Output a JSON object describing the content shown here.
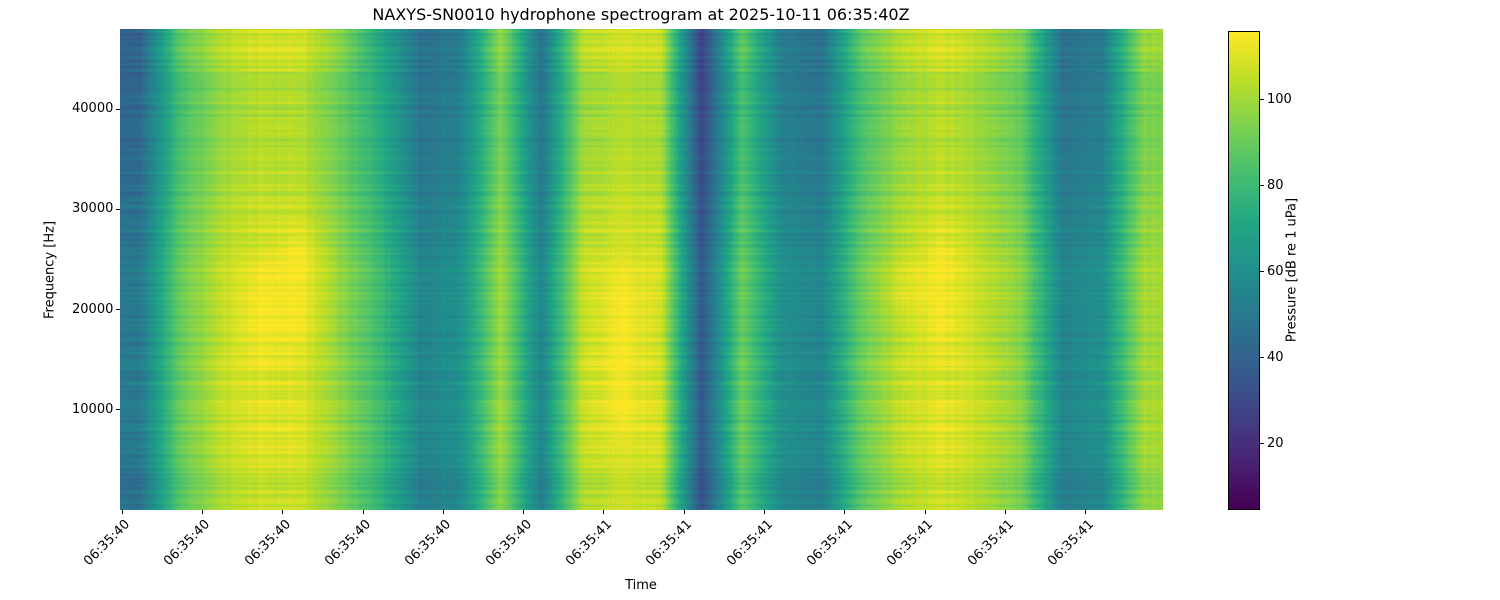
{
  "chart_data": {
    "type": "heatmap",
    "title": "NAXYS-SN0010 hydrophone spectrogram at 2025-10-11 06:35:40Z",
    "xlabel": "Time",
    "ylabel": "Frequency [Hz]",
    "x_tick_labels": [
      "06:35:40",
      "06:35:40",
      "06:35:40",
      "06:35:40",
      "06:35:40",
      "06:35:40",
      "06:35:41",
      "06:35:41",
      "06:35:41",
      "06:35:41",
      "06:35:41",
      "06:35:41",
      "06:35:41"
    ],
    "y_ticks_hz": [
      10000,
      20000,
      30000,
      40000
    ],
    "ylim_hz": [
      0,
      48000
    ],
    "colormap": "viridis",
    "grid": false,
    "legend": "none",
    "colorbar": {
      "label": "Pressure [dB re 1 uPa]",
      "ticks": [
        20,
        40,
        60,
        80,
        100
      ],
      "vmin": 5,
      "vmax": 116
    },
    "values_db": {
      "orientation": "rows are frequency bands from lowest (first) to highest (last); columns are time from left to right; coarse estimate of spectrogram level in dB re 1 uPa",
      "rows": [
        [
          47,
          87,
          102,
          107,
          107,
          94,
          77,
          52,
          57,
          97,
          52,
          102,
          107,
          105,
          32,
          87,
          57,
          52,
          87,
          102,
          108,
          102,
          92,
          52,
          57,
          97
        ],
        [
          50,
          90,
          105,
          110,
          110,
          97,
          80,
          55,
          60,
          100,
          55,
          105,
          110,
          108,
          35,
          90,
          60,
          55,
          90,
          105,
          111,
          105,
          95,
          55,
          60,
          100
        ],
        [
          51,
          91,
          106,
          111,
          111,
          98,
          81,
          56,
          61,
          101,
          56,
          106,
          115,
          109,
          36,
          91,
          61,
          56,
          91,
          106,
          112,
          106,
          96,
          56,
          61,
          101
        ],
        [
          52,
          90,
          107,
          112,
          110,
          97,
          80,
          55,
          62,
          100,
          55,
          107,
          115,
          108,
          35,
          92,
          60,
          55,
          92,
          107,
          111,
          107,
          95,
          55,
          62,
          100
        ],
        [
          50,
          90,
          105,
          115,
          115,
          97,
          80,
          55,
          60,
          100,
          55,
          105,
          115,
          108,
          35,
          90,
          60,
          55,
          90,
          105,
          115,
          105,
          95,
          55,
          60,
          100
        ],
        [
          51,
          91,
          106,
          115,
          115,
          98,
          81,
          56,
          61,
          101,
          56,
          106,
          115,
          109,
          36,
          91,
          61,
          56,
          91,
          111,
          115,
          106,
          96,
          56,
          61,
          101
        ],
        [
          49,
          89,
          104,
          109,
          115,
          96,
          79,
          54,
          59,
          99,
          54,
          104,
          109,
          107,
          34,
          89,
          59,
          54,
          89,
          104,
          114,
          104,
          94,
          54,
          59,
          99
        ],
        [
          47,
          87,
          102,
          107,
          107,
          94,
          77,
          52,
          57,
          97,
          52,
          102,
          107,
          105,
          32,
          87,
          57,
          52,
          87,
          102,
          108,
          102,
          92,
          52,
          57,
          97
        ],
        [
          45,
          85,
          100,
          105,
          105,
          92,
          75,
          50,
          55,
          95,
          50,
          100,
          105,
          103,
          30,
          85,
          55,
          50,
          85,
          100,
          106,
          100,
          90,
          50,
          55,
          95
        ],
        [
          43,
          83,
          98,
          103,
          103,
          90,
          73,
          48,
          53,
          93,
          48,
          98,
          103,
          101,
          28,
          83,
          53,
          48,
          83,
          98,
          104,
          98,
          88,
          48,
          53,
          93
        ],
        [
          42,
          82,
          97,
          102,
          102,
          89,
          72,
          47,
          52,
          92,
          47,
          97,
          102,
          100,
          27,
          82,
          52,
          47,
          82,
          97,
          103,
          97,
          87,
          47,
          52,
          92
        ],
        [
          41,
          89,
          104,
          109,
          109,
          96,
          71,
          46,
          51,
          99,
          46,
          104,
          109,
          107,
          26,
          89,
          51,
          46,
          89,
          104,
          110,
          104,
          94,
          46,
          51,
          99
        ]
      ]
    }
  }
}
